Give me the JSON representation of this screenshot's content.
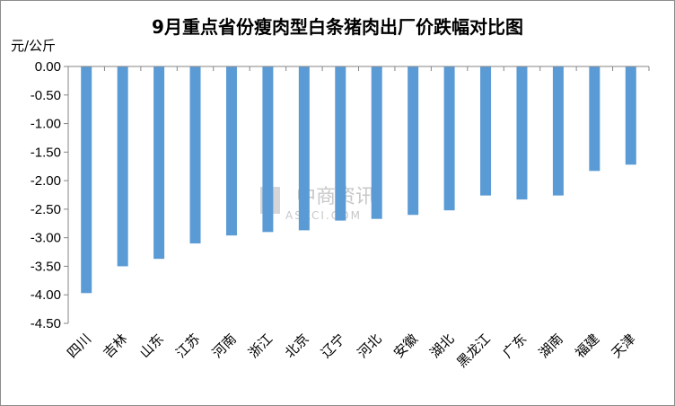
{
  "title": "9月重点省份瘦肉型白条猪肉出厂价跌幅对比图",
  "unit_label": "元/公斤",
  "watermark": {
    "main": "中商资讯",
    "sub": "ASKCI.COM"
  },
  "colors": {
    "bar": "#5b9bd5",
    "axis": "#868686"
  },
  "chart_data": {
    "type": "bar",
    "title": "9月重点省份瘦肉型白条猪肉出厂价跌幅对比图",
    "xlabel": "",
    "ylabel": "元/公斤",
    "ylim": [
      -4.5,
      0
    ],
    "yticks": [
      "0.00",
      "-0.50",
      "-1.00",
      "-1.50",
      "-2.00",
      "-2.50",
      "-3.00",
      "-3.50",
      "-4.00",
      "-4.50"
    ],
    "grid": false,
    "categories": [
      "四川",
      "吉林",
      "山东",
      "江苏",
      "河南",
      "浙江",
      "北京",
      "辽宁",
      "河北",
      "安徽",
      "湖北",
      "黑龙江",
      "广东",
      "湖南",
      "福建",
      "天津"
    ],
    "values": [
      -3.97,
      -3.5,
      -3.37,
      -3.1,
      -2.96,
      -2.9,
      -2.87,
      -2.7,
      -2.67,
      -2.6,
      -2.52,
      -2.26,
      -2.33,
      -2.26,
      -1.83,
      -1.72
    ]
  }
}
